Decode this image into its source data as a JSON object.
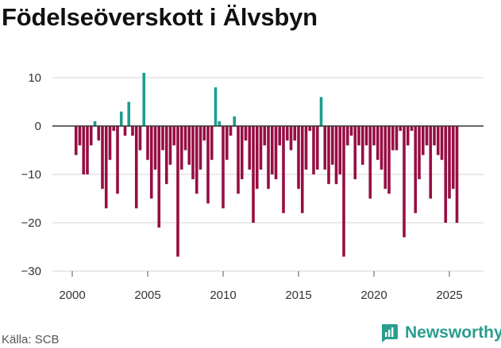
{
  "chart_data": {
    "type": "bar",
    "title": "Födelseöverskott i Älvsbyn",
    "xlabel": "",
    "ylabel": "",
    "ylim": [
      -30,
      12
    ],
    "xlim": [
      1999.0,
      2027.0
    ],
    "y_ticks": [
      10,
      0,
      -10,
      -20,
      -30
    ],
    "y_tick_labels": [
      "10",
      "0",
      "−10",
      "−20",
      "−30"
    ],
    "x_ticks": [
      2000,
      2005,
      2010,
      2015,
      2020,
      2025
    ],
    "x_tick_labels": [
      "2000",
      "2005",
      "2010",
      "2015",
      "2020",
      "2025"
    ],
    "colors": {
      "positive": "#1b9e8f",
      "negative": "#970e43",
      "grid": "#d4d4d4",
      "zero": "#333333"
    },
    "start_year": 2000.25,
    "step": 0.25,
    "values": [
      -6,
      -4,
      -10,
      -10,
      -4,
      1,
      -3,
      -13,
      -17,
      -7,
      -1,
      -14,
      3,
      -2,
      5,
      -2,
      -17,
      -5,
      11,
      -7,
      -15,
      -9,
      -21,
      -5,
      -12,
      -8,
      -4,
      -27,
      -9,
      -5,
      -8,
      -11,
      -14,
      -9,
      -3,
      -16,
      -7,
      8,
      1,
      -17,
      -7,
      -2,
      2,
      -14,
      -11,
      -3,
      -9,
      -20,
      -13,
      -9,
      -4,
      -13,
      -10,
      -11,
      -4,
      -18,
      -3,
      -5,
      -3,
      -13,
      -18,
      -9,
      -1,
      -10,
      -9,
      6,
      -9,
      -12,
      -8,
      -12,
      -10,
      -27,
      -4,
      -2,
      -11,
      -4,
      -8,
      -4,
      -15,
      -4,
      -7,
      -9,
      -13,
      -14,
      -5,
      -5,
      -1,
      -23,
      -4,
      -1,
      -18,
      -11,
      -6,
      -4,
      -15,
      -4,
      -6,
      -7,
      -20,
      -15,
      -13,
      -20
    ]
  },
  "footer": {
    "source": "Källa: SCB",
    "brand": "Newsworthy"
  }
}
